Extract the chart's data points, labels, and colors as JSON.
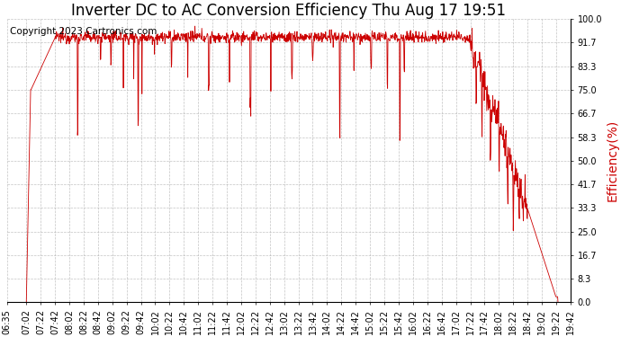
{
  "title": "Inverter DC to AC Conversion Efficiency Thu Aug 17 19:51",
  "ylabel": "Efficiency(%)",
  "ylabel_color": "#cc0000",
  "copyright_text": "Copyright 2023 Cartronics.com",
  "line_color": "#cc0000",
  "background_color": "#ffffff",
  "plot_bg_color": "#ffffff",
  "grid_color": "#aaaaaa",
  "yticks": [
    0.0,
    8.3,
    16.7,
    25.0,
    33.3,
    41.7,
    50.0,
    58.3,
    66.7,
    75.0,
    83.3,
    91.7,
    100.0
  ],
  "ylim": [
    0.0,
    100.0
  ],
  "xtick_labels": [
    "06:35",
    "07:02",
    "07:22",
    "07:42",
    "08:02",
    "08:22",
    "08:42",
    "09:02",
    "09:22",
    "09:42",
    "10:02",
    "10:22",
    "10:42",
    "11:02",
    "11:22",
    "11:42",
    "12:02",
    "12:22",
    "12:42",
    "13:02",
    "13:22",
    "13:42",
    "14:02",
    "14:22",
    "14:42",
    "15:02",
    "15:22",
    "15:42",
    "16:02",
    "16:22",
    "16:42",
    "17:02",
    "17:22",
    "17:42",
    "18:02",
    "18:22",
    "18:42",
    "19:02",
    "19:22",
    "19:42"
  ],
  "title_fontsize": 12,
  "copyright_fontsize": 7.5,
  "ylabel_fontsize": 10,
  "tick_fontsize": 7
}
